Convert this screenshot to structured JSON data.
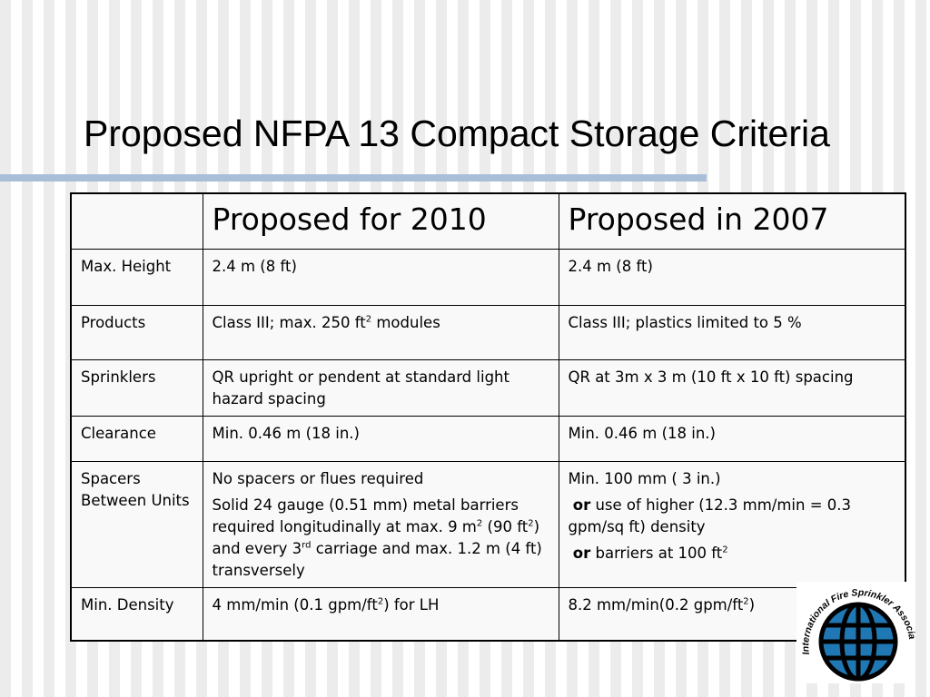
{
  "slide": {
    "title": "Proposed NFPA 13 Compact Storage Criteria"
  },
  "table": {
    "headers": [
      "",
      "Proposed for 2010",
      "Proposed in 2007"
    ],
    "rows": [
      {
        "label": "Max. Height",
        "col2": "2.4 m (8 ft)",
        "col3": "2.4 m (8 ft)"
      },
      {
        "label": "Products",
        "col2_pre": "Class III; max. 250 ft",
        "col2_sup": "2",
        "col2_post": " modules",
        "col3": "Class III; plastics limited to 5 %"
      },
      {
        "label": "Sprinklers",
        "col2": "QR upright or pendent  at standard light hazard spacing",
        "col3": "QR at 3m x 3 m (10 ft x 10 ft) spacing"
      },
      {
        "label": "Clearance",
        "col2": "Min. 0.46 m (18 in.)",
        "col3": "Min. 0.46 m (18 in.)"
      },
      {
        "label": "Spacers Between Units",
        "col2_p1": "No spacers or flues required",
        "col2_p2_a": "Solid 24 gauge (0.51 mm) metal barriers required longitudinally at max. 9 m",
        "col2_p2_sup1": "2",
        "col2_p2_b": " (90 ft",
        "col2_p2_sup2": "2",
        "col2_p2_c": ") and every 3",
        "col2_p2_sup3": "rd",
        "col2_p2_d": " carriage and max. 1.2 m (4 ft) transversely",
        "col3_p1": "Min. 100 mm ( 3 in.)",
        "col3_p2_or": "or",
        "col3_p2_text": " use of higher (12.3 mm/min = 0.3 gpm/sq ft) density",
        "col3_p3_or": "or",
        "col3_p3_text": " barriers at 100 ft",
        "col3_p3_sup": "2"
      },
      {
        "label": "Min. Density",
        "col2_pre": "4 mm/min (0.1 gpm/ft",
        "col2_sup": "2",
        "col2_post": ") for LH",
        "col3_pre": "8.2 mm/min(0.2 gpm/ft",
        "col3_sup": "2",
        "col3_post": ")"
      }
    ]
  },
  "logo": {
    "text": "International Fire Sprinkler Association, Ltd.",
    "icon": "globe-icon",
    "colors": {
      "globe": "#1f78b4",
      "outline": "#000000"
    }
  }
}
